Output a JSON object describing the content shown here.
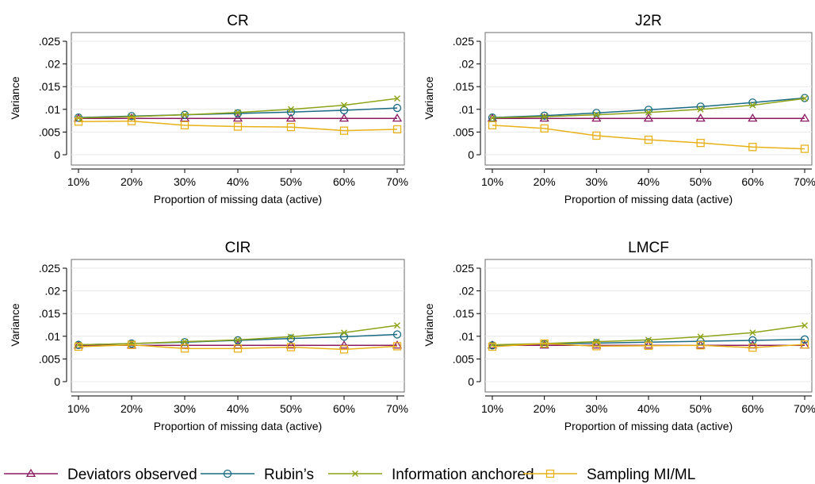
{
  "chart_data": [
    {
      "type": "line",
      "title": "CR",
      "xlabel": "Proportion of missing data (active)",
      "ylabel": "Variance",
      "categories": [
        "10%",
        "20%",
        "30%",
        "40%",
        "50%",
        "60%",
        "70%"
      ],
      "yticks": [
        ".025",
        ".02",
        ".015",
        ".01",
        ".005",
        "0"
      ],
      "ylim": [
        0,
        0.025
      ],
      "series": [
        {
          "name": "Deviators observed",
          "values": [
            0.008,
            0.008,
            0.008,
            0.008,
            0.008,
            0.008,
            0.008
          ]
        },
        {
          "name": "Rubin’s",
          "values": [
            0.0082,
            0.0085,
            0.0088,
            0.0091,
            0.0094,
            0.0098,
            0.0103
          ]
        },
        {
          "name": "Information anchored",
          "values": [
            0.0081,
            0.0084,
            0.0088,
            0.0093,
            0.01,
            0.0109,
            0.0124
          ]
        },
        {
          "name": "Sampling MI/ML",
          "values": [
            0.0073,
            0.0074,
            0.0065,
            0.0062,
            0.0061,
            0.0053,
            0.0056
          ]
        }
      ]
    },
    {
      "type": "line",
      "title": "J2R",
      "xlabel": "Proportion of missing data (active)",
      "ylabel": "Variance",
      "categories": [
        "10%",
        "20%",
        "30%",
        "40%",
        "50%",
        "60%",
        "70%"
      ],
      "yticks": [
        ".025",
        ".02",
        ".015",
        ".01",
        ".005",
        "0"
      ],
      "ylim": [
        0,
        0.025
      ],
      "series": [
        {
          "name": "Deviators observed",
          "values": [
            0.008,
            0.008,
            0.008,
            0.008,
            0.008,
            0.008,
            0.008
          ]
        },
        {
          "name": "Rubin’s",
          "values": [
            0.0082,
            0.0086,
            0.0092,
            0.0099,
            0.0106,
            0.0115,
            0.0125
          ]
        },
        {
          "name": "Information anchored",
          "values": [
            0.0081,
            0.0084,
            0.0088,
            0.0093,
            0.01,
            0.0109,
            0.0124
          ]
        },
        {
          "name": "Sampling MI/ML",
          "values": [
            0.0065,
            0.0058,
            0.0042,
            0.0033,
            0.0026,
            0.0017,
            0.0013
          ]
        }
      ]
    },
    {
      "type": "line",
      "title": "CIR",
      "xlabel": "Proportion of missing data (active)",
      "ylabel": "Variance",
      "categories": [
        "10%",
        "20%",
        "30%",
        "40%",
        "50%",
        "60%",
        "70%"
      ],
      "yticks": [
        ".025",
        ".02",
        ".015",
        ".01",
        ".005",
        "0"
      ],
      "ylim": [
        0,
        0.025
      ],
      "series": [
        {
          "name": "Deviators observed",
          "values": [
            0.008,
            0.008,
            0.008,
            0.008,
            0.008,
            0.008,
            0.008
          ]
        },
        {
          "name": "Rubin’s",
          "values": [
            0.0081,
            0.0084,
            0.0087,
            0.0091,
            0.0095,
            0.0099,
            0.0104
          ]
        },
        {
          "name": "Information anchored",
          "values": [
            0.0081,
            0.0084,
            0.0088,
            0.0092,
            0.0099,
            0.0108,
            0.0124
          ]
        },
        {
          "name": "Sampling MI/ML",
          "values": [
            0.0077,
            0.0081,
            0.0073,
            0.0073,
            0.0076,
            0.0071,
            0.0078
          ]
        }
      ]
    },
    {
      "type": "line",
      "title": "LMCF",
      "xlabel": "Proportion of missing data (active)",
      "ylabel": "Variance",
      "categories": [
        "10%",
        "20%",
        "30%",
        "40%",
        "50%",
        "60%",
        "70%"
      ],
      "yticks": [
        ".025",
        ".02",
        ".015",
        ".01",
        ".005",
        "0"
      ],
      "ylim": [
        0,
        0.025
      ],
      "series": [
        {
          "name": "Deviators observed",
          "values": [
            0.008,
            0.008,
            0.008,
            0.008,
            0.008,
            0.008,
            0.008
          ]
        },
        {
          "name": "Rubin’s",
          "values": [
            0.008,
            0.0083,
            0.0085,
            0.0087,
            0.0089,
            0.0091,
            0.0093
          ]
        },
        {
          "name": "Information anchored",
          "values": [
            0.0081,
            0.0084,
            0.0088,
            0.0092,
            0.0099,
            0.0108,
            0.0124
          ]
        },
        {
          "name": "Sampling MI/ML",
          "values": [
            0.0077,
            0.0084,
            0.0078,
            0.0079,
            0.008,
            0.0075,
            0.0082
          ]
        }
      ]
    }
  ],
  "legend": [
    {
      "label": "Deviators observed",
      "color": "#8b1c62",
      "marker": "triangle"
    },
    {
      "label": "Rubin’s",
      "color": "#1a6b83",
      "marker": "circle"
    },
    {
      "label": "Information anchored",
      "color": "#8ea317",
      "marker": "x"
    },
    {
      "label": "Sampling MI/ML",
      "color": "#e8b118",
      "marker": "square"
    }
  ]
}
